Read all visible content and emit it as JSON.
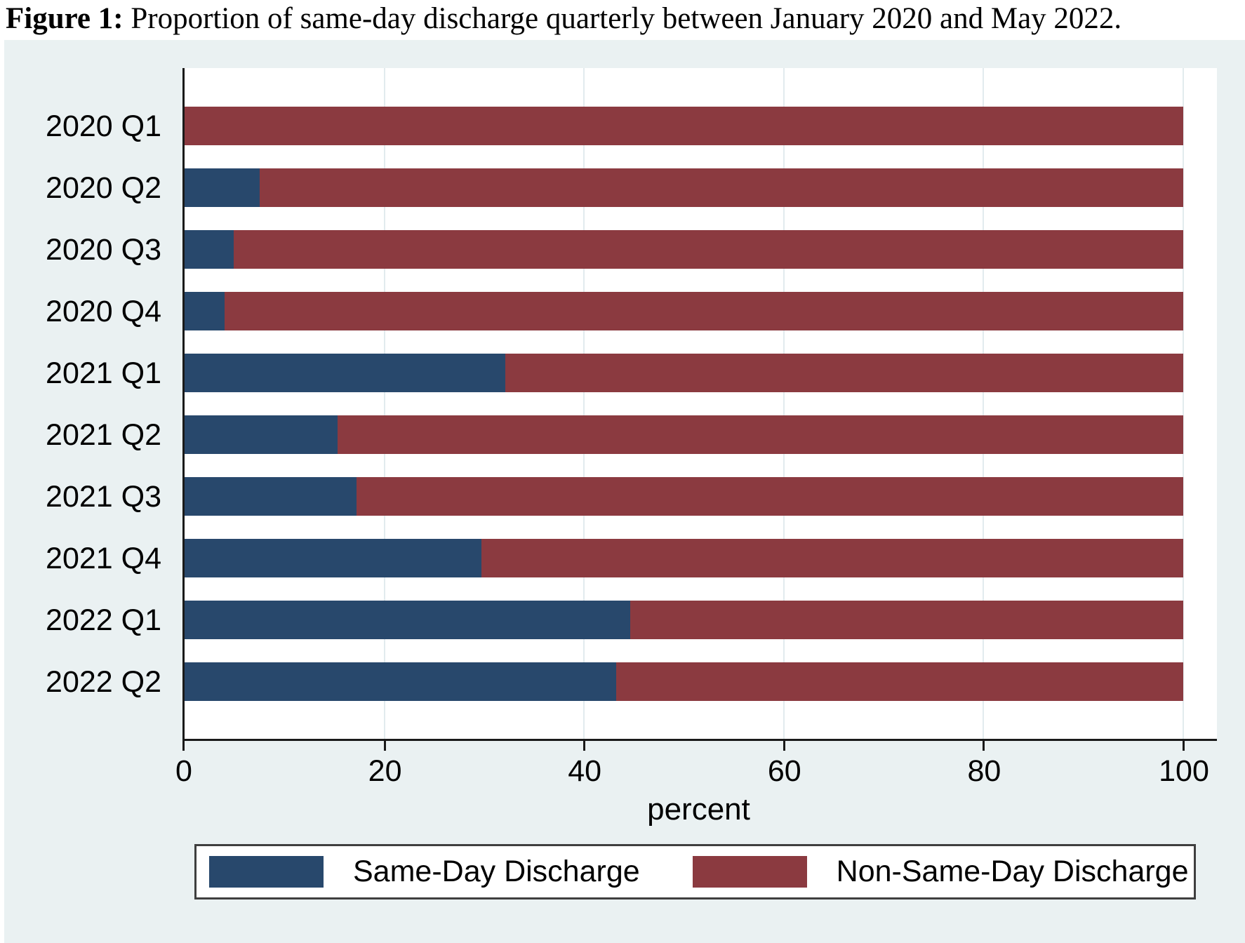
{
  "figure": {
    "label": "Figure 1:",
    "caption": " Proportion of same-day discharge quarterly between January 2020 and May 2022."
  },
  "chart_data": {
    "type": "bar",
    "orientation": "horizontal",
    "stacked": true,
    "stacked_total": 100,
    "title": "Proportion of same-day discharge quarterly between January 2020 and May 2022",
    "categories": [
      "2020 Q1",
      "2020 Q2",
      "2020 Q3",
      "2020 Q4",
      "2021 Q1",
      "2021 Q2",
      "2021 Q3",
      "2021 Q4",
      "2022 Q1",
      "2022 Q2"
    ],
    "series": [
      {
        "name": "Same-Day Discharge",
        "color": "#28486c",
        "values": [
          0.0,
          7.5,
          4.9,
          4.0,
          32.1,
          15.3,
          17.2,
          29.7,
          44.6,
          43.2
        ]
      },
      {
        "name": "Non-Same-Day Discharge",
        "color": "#8b3a40",
        "values": [
          100.0,
          92.5,
          95.1,
          96.0,
          67.9,
          84.7,
          82.8,
          70.3,
          55.4,
          56.8
        ]
      }
    ],
    "xlabel": "percent",
    "x_ticks": [
      0,
      20,
      40,
      60,
      80,
      100
    ],
    "xlim": [
      0,
      100
    ],
    "grid": "vertical-faint",
    "legend_position": "bottom"
  },
  "colors": {
    "panel_background": "#eaf1f2",
    "plot_background": "#ffffff",
    "gridline": "#e2ebee",
    "axis": "#1a1a1a",
    "same_day": "#28486c",
    "non_same_day": "#8b3a40",
    "legend_border": "#3f3f3f"
  }
}
